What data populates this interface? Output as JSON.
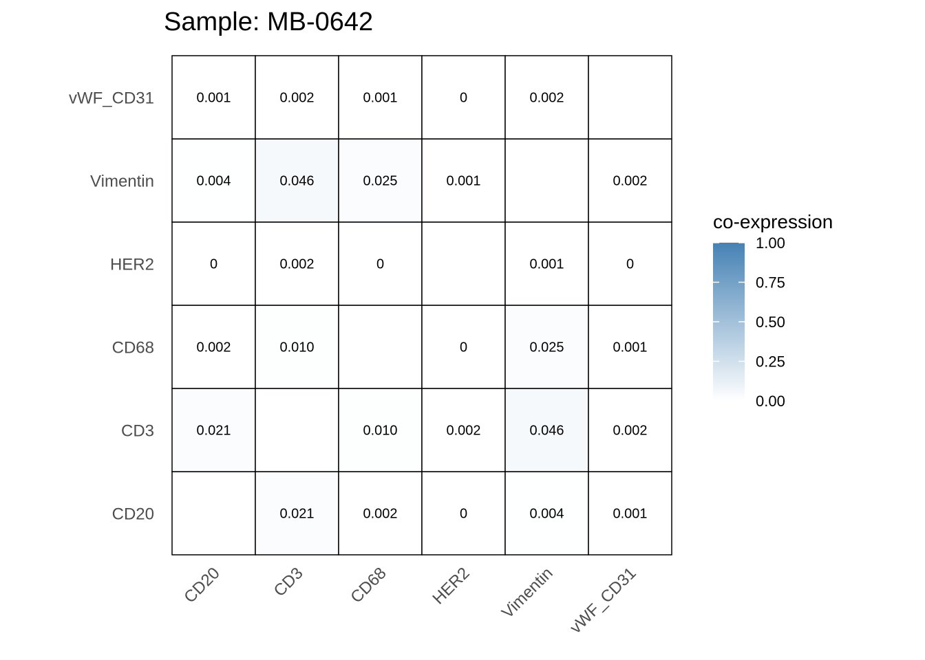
{
  "chart_data": {
    "type": "heatmap",
    "title": "Sample: MB-0642",
    "x_categories": [
      "CD20",
      "CD3",
      "CD68",
      "HER2",
      "Vimentin",
      "vWF_CD31"
    ],
    "y_categories": [
      "CD20",
      "CD3",
      "CD68",
      "HER2",
      "Vimentin",
      "vWF_CD31"
    ],
    "cells": [
      {
        "x": "CD20",
        "y": "CD20",
        "value": null,
        "label": ""
      },
      {
        "x": "CD3",
        "y": "CD20",
        "value": 0.021,
        "label": "0.021"
      },
      {
        "x": "CD68",
        "y": "CD20",
        "value": 0.002,
        "label": "0.002"
      },
      {
        "x": "HER2",
        "y": "CD20",
        "value": 0,
        "label": "0"
      },
      {
        "x": "Vimentin",
        "y": "CD20",
        "value": 0.004,
        "label": "0.004"
      },
      {
        "x": "vWF_CD31",
        "y": "CD20",
        "value": 0.001,
        "label": "0.001"
      },
      {
        "x": "CD20",
        "y": "CD3",
        "value": 0.021,
        "label": "0.021"
      },
      {
        "x": "CD3",
        "y": "CD3",
        "value": null,
        "label": ""
      },
      {
        "x": "CD68",
        "y": "CD3",
        "value": 0.01,
        "label": "0.010"
      },
      {
        "x": "HER2",
        "y": "CD3",
        "value": 0.002,
        "label": "0.002"
      },
      {
        "x": "Vimentin",
        "y": "CD3",
        "value": 0.046,
        "label": "0.046"
      },
      {
        "x": "vWF_CD31",
        "y": "CD3",
        "value": 0.002,
        "label": "0.002"
      },
      {
        "x": "CD20",
        "y": "CD68",
        "value": 0.002,
        "label": "0.002"
      },
      {
        "x": "CD3",
        "y": "CD68",
        "value": 0.01,
        "label": "0.010"
      },
      {
        "x": "CD68",
        "y": "CD68",
        "value": null,
        "label": ""
      },
      {
        "x": "HER2",
        "y": "CD68",
        "value": 0,
        "label": "0"
      },
      {
        "x": "Vimentin",
        "y": "CD68",
        "value": 0.025,
        "label": "0.025"
      },
      {
        "x": "vWF_CD31",
        "y": "CD68",
        "value": 0.001,
        "label": "0.001"
      },
      {
        "x": "CD20",
        "y": "HER2",
        "value": 0,
        "label": "0"
      },
      {
        "x": "CD3",
        "y": "HER2",
        "value": 0.002,
        "label": "0.002"
      },
      {
        "x": "CD68",
        "y": "HER2",
        "value": 0,
        "label": "0"
      },
      {
        "x": "HER2",
        "y": "HER2",
        "value": null,
        "label": ""
      },
      {
        "x": "Vimentin",
        "y": "HER2",
        "value": 0.001,
        "label": "0.001"
      },
      {
        "x": "vWF_CD31",
        "y": "HER2",
        "value": 0,
        "label": "0"
      },
      {
        "x": "CD20",
        "y": "Vimentin",
        "value": 0.004,
        "label": "0.004"
      },
      {
        "x": "CD3",
        "y": "Vimentin",
        "value": 0.046,
        "label": "0.046"
      },
      {
        "x": "CD68",
        "y": "Vimentin",
        "value": 0.025,
        "label": "0.025"
      },
      {
        "x": "HER2",
        "y": "Vimentin",
        "value": 0.001,
        "label": "0.001"
      },
      {
        "x": "Vimentin",
        "y": "Vimentin",
        "value": null,
        "label": ""
      },
      {
        "x": "vWF_CD31",
        "y": "Vimentin",
        "value": 0.002,
        "label": "0.002"
      },
      {
        "x": "CD20",
        "y": "vWF_CD31",
        "value": 0.001,
        "label": "0.001"
      },
      {
        "x": "CD3",
        "y": "vWF_CD31",
        "value": 0.002,
        "label": "0.002"
      },
      {
        "x": "CD68",
        "y": "vWF_CD31",
        "value": 0.001,
        "label": "0.001"
      },
      {
        "x": "HER2",
        "y": "vWF_CD31",
        "value": 0,
        "label": "0"
      },
      {
        "x": "Vimentin",
        "y": "vWF_CD31",
        "value": 0.002,
        "label": "0.002"
      },
      {
        "x": "vWF_CD31",
        "y": "vWF_CD31",
        "value": null,
        "label": ""
      }
    ],
    "legend": {
      "title": "co-expression",
      "ticks": [
        1.0,
        0.75,
        0.5,
        0.25,
        0.0
      ],
      "tick_labels": [
        "1.00",
        "0.75",
        "0.50",
        "0.25",
        "0.00"
      ],
      "color_low": "#ffffff",
      "color_high": "#4682b4",
      "placement": "right"
    },
    "value_range": [
      0,
      1
    ]
  }
}
